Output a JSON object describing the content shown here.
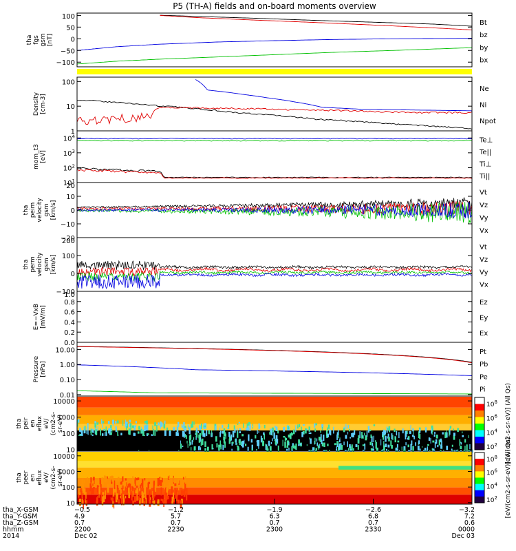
{
  "title": "P5 (TH-A) fields and on-board moments overview",
  "colors": {
    "black": "#000000",
    "red": "#e00000",
    "green": "#00c000",
    "blue": "#0000e0",
    "yellow": "#ffff00"
  },
  "chart_data": [
    {
      "type": "line",
      "panel": "fgs",
      "ylabel": [
        "tha",
        "fgs",
        "gsm",
        "[nT]"
      ],
      "ylim": [
        -120,
        110
      ],
      "yticks": [
        "100",
        "50",
        "0",
        "−50",
        "−100"
      ],
      "legend": [
        {
          "text": "Bt",
          "color": "black"
        },
        {
          "text": "bz",
          "color": "red"
        },
        {
          "text": "by",
          "color": "green"
        },
        {
          "text": "bx",
          "color": "blue"
        }
      ],
      "series": [
        {
          "name": "Bt",
          "x": [
            0.21,
            0.3,
            0.45,
            0.6,
            0.75,
            0.9,
            1.0
          ],
          "y": [
            101,
            96,
            88,
            79,
            71,
            63,
            54
          ]
        },
        {
          "name": "bz",
          "x": [
            0.21,
            0.3,
            0.45,
            0.6,
            0.75,
            0.9,
            1.0
          ],
          "y": [
            100,
            91,
            80,
            70,
            59,
            47,
            38
          ]
        },
        {
          "name": "by",
          "x": [
            0,
            0.1,
            0.2,
            0.35,
            0.5,
            0.65,
            0.8,
            1.0
          ],
          "y": [
            -108,
            -96,
            -88,
            -78,
            -68,
            -58,
            -50,
            -38
          ]
        },
        {
          "name": "bx",
          "x": [
            0,
            0.1,
            0.2,
            0.35,
            0.5,
            0.65,
            0.8,
            1.0
          ],
          "y": [
            -50,
            -34,
            -24,
            -14,
            -8,
            -3,
            0,
            2
          ]
        }
      ]
    },
    {
      "type": "line",
      "panel": "density",
      "ylabel": [
        "Density",
        "[cm-3]"
      ],
      "ylog": true,
      "ylim": [
        1,
        150
      ],
      "yticks": [
        "100",
        "10",
        "1"
      ],
      "legend": [
        {
          "text": "Ne",
          "color": "red"
        },
        {
          "text": "Ni",
          "color": "black"
        },
        {
          "text": "Npot",
          "color": "blue"
        }
      ],
      "series": [
        {
          "name": "Ni",
          "x": [
            0,
            0.2,
            0.4,
            0.6,
            0.8,
            1.0
          ],
          "y": [
            18,
            10.5,
            5.5,
            3,
            1.9,
            1.2
          ]
        },
        {
          "name": "Ne",
          "x": [
            0,
            0.1,
            0.18,
            0.21,
            0.3,
            0.5,
            0.7,
            0.85,
            1.0
          ],
          "y": [
            2.2,
            3.2,
            3.6,
            9,
            8.5,
            7.5,
            6.5,
            5.5,
            5.5
          ]
        },
        {
          "name": "Npot",
          "x": [
            0.3,
            0.33,
            0.42,
            0.48,
            0.55,
            0.62,
            0.72,
            0.85,
            1.0
          ],
          "y": [
            120,
            45,
            30,
            22,
            15,
            9,
            7.5,
            7,
            6.5
          ]
        }
      ]
    },
    {
      "type": "line",
      "panel": "temperature",
      "ylabel": [
        "mom_t3",
        "[eV]"
      ],
      "ylog": true,
      "ylim": [
        10,
        30000
      ],
      "yticks": [
        "10^4",
        "10^3",
        "10^2",
        "10^1"
      ],
      "legend": [
        {
          "text": "Te⊥",
          "color": "red"
        },
        {
          "text": "Te||",
          "color": "black"
        },
        {
          "text": "Ti⊥",
          "color": "blue"
        },
        {
          "text": "Ti||",
          "color": "green"
        }
      ],
      "series": [
        {
          "name": "Ti⊥",
          "x": [
            0,
            1.0
          ],
          "y": [
            9000,
            9000
          ]
        },
        {
          "name": "Ti||",
          "x": [
            0,
            1.0
          ],
          "y": [
            6500,
            6500
          ]
        },
        {
          "name": "Te||",
          "x": [
            0,
            0.08,
            0.2,
            0.21,
            0.22,
            1.0
          ],
          "y": [
            90,
            75,
            55,
            55,
            22,
            22
          ]
        },
        {
          "name": "Te⊥",
          "x": [
            0,
            0.08,
            0.2,
            0.21,
            0.22,
            1.0
          ],
          "y": [
            70,
            60,
            45,
            45,
            20,
            20
          ]
        }
      ]
    },
    {
      "type": "line",
      "panel": "peim",
      "ylabel": [
        "tha",
        "peim",
        "velocity",
        "gsm",
        "[km/s]"
      ],
      "ylim": [
        -20,
        20
      ],
      "yticks": [
        "20",
        "10",
        "0",
        "−10",
        "−20"
      ],
      "legend": [
        {
          "text": "Vt",
          "color": "black"
        },
        {
          "text": "Vz",
          "color": "red"
        },
        {
          "text": "Vy",
          "color": "green"
        },
        {
          "text": "Vx",
          "color": "blue"
        }
      ],
      "series": [
        {
          "name": "Vt"
        },
        {
          "name": "Vz"
        },
        {
          "name": "Vy"
        },
        {
          "name": "Vx"
        }
      ]
    },
    {
      "type": "line",
      "panel": "perm",
      "ylabel": [
        "tha",
        "perm",
        "velocity",
        "gsm",
        "[km/s]"
      ],
      "ylim": [
        -100,
        200
      ],
      "yticks": [
        "200",
        "100",
        "0",
        "−100"
      ],
      "legend": [
        {
          "text": "Vt",
          "color": "black"
        },
        {
          "text": "Vz",
          "color": "red"
        },
        {
          "text": "Vy",
          "color": "green"
        },
        {
          "text": "Vx",
          "color": "blue"
        }
      ],
      "series": [
        {
          "name": "Vt"
        },
        {
          "name": "Vz"
        },
        {
          "name": "Vy"
        },
        {
          "name": "Vx"
        }
      ]
    },
    {
      "type": "line",
      "panel": "exb",
      "ylabel": [
        "E=−VxB",
        "[mV/m]"
      ],
      "ylim": [
        0,
        1
      ],
      "yticks": [
        "1.0",
        "0.8",
        "0.6",
        "0.4",
        "0.2",
        "0.0"
      ],
      "legend": [
        {
          "text": "Ez",
          "color": "red"
        },
        {
          "text": "Ey",
          "color": "green"
        },
        {
          "text": "Ex",
          "color": "blue"
        }
      ],
      "series": []
    },
    {
      "type": "line",
      "panel": "pressure",
      "ylabel": [
        "Pressure",
        "[nPa]"
      ],
      "ylog": true,
      "ylim": [
        0.008,
        30
      ],
      "yticks": [
        "10.00",
        "1.00",
        "0.10",
        "0.01"
      ],
      "legend": [
        {
          "text": "Pt",
          "color": "black"
        },
        {
          "text": "Pb",
          "color": "red"
        },
        {
          "text": "Pe",
          "color": "green"
        },
        {
          "text": "Pi",
          "color": "blue"
        }
      ],
      "series": [
        {
          "name": "Pt",
          "x": [
            0,
            1.0
          ],
          "y": [
            16,
            1.4
          ]
        },
        {
          "name": "Pb",
          "x": [
            0,
            1.0
          ],
          "y": [
            15.5,
            1.3
          ]
        },
        {
          "name": "Pi",
          "x": [
            0,
            0.3,
            1.0
          ],
          "y": [
            0.95,
            0.45,
            0.18
          ]
        },
        {
          "name": "Pe",
          "x": [
            0,
            0.2,
            1.0
          ],
          "y": [
            0.018,
            0.013,
            0.011
          ]
        }
      ]
    },
    {
      "type": "heatmap",
      "panel": "peir",
      "ylabel": [
        "tha",
        "peir",
        "en",
        "eflux",
        "eV/",
        "(cm2-s-",
        "sr-eV)"
      ],
      "ylog": true,
      "ylim": [
        8,
        20000
      ],
      "yticks": [
        "10000",
        "1000",
        "100",
        "10"
      ],
      "colorbar": {
        "label": "[eV/(cm2-s-sr-eV)] (All Qs)",
        "ticks": [
          "10^8",
          "10^6",
          "10^4",
          "10^2"
        ]
      }
    },
    {
      "type": "heatmap",
      "panel": "peer",
      "ylabel": [
        "tha",
        "peer",
        "en",
        "eflux",
        "eV/",
        "(cm2-s-",
        "sr-eV)"
      ],
      "ylog": true,
      "ylim": [
        8,
        20000
      ],
      "yticks": [
        "10000",
        "1000",
        "100",
        "10"
      ],
      "colorbar": {
        "label": "[eV/(cm2-s-sr-eV)] (All Qs)",
        "ticks": [
          "10^8",
          "10^6",
          "10^4",
          "10^2"
        ]
      }
    }
  ],
  "xaxis": {
    "row_labels": [
      "tha_X-GSM",
      "tha_Y-GSM",
      "tha_Z-GSM",
      "hhmm",
      "2014"
    ],
    "ticks": [
      {
        "vals": [
          "−0.5",
          "4.9",
          "0.7",
          "2200",
          "Dec 02"
        ]
      },
      {
        "vals": [
          "−1.2",
          "5.7",
          "0.7",
          "2230",
          ""
        ]
      },
      {
        "vals": [
          "−1.9",
          "6.3",
          "0.7",
          "2300",
          ""
        ]
      },
      {
        "vals": [
          "−2.6",
          "6.8",
          "0.7",
          "2330",
          ""
        ]
      },
      {
        "vals": [
          "−3.2",
          "7.2",
          "0.6",
          "0000",
          "Dec 03"
        ]
      }
    ]
  }
}
